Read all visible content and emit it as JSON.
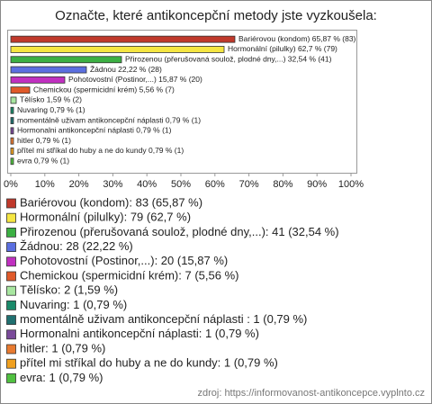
{
  "chart_data": {
    "type": "bar",
    "orientation": "horizontal",
    "title": "Označte, které antikoncepční metody jste vyzkoušela:",
    "categories": [
      "Bariérovou (kondom)",
      "Hormonální (pilulky)",
      "Přirozenou (přerušovaná soulož, plodné dny,...)",
      "Žádnou",
      "Pohotovostní (Postinor,...)",
      "Chemickou (spermicidní krém)",
      "Tělísko",
      "Nuvaring",
      "momentálně uživam antikoncepční náplasti",
      "Hormonalni antikoncepční náplasti",
      "hitler",
      "přítel mi stříkal do huby a ne do kundy",
      "evra"
    ],
    "values": [
      65.87,
      62.7,
      32.54,
      22.22,
      15.87,
      5.56,
      1.59,
      0.79,
      0.79,
      0.79,
      0.79,
      0.79,
      0.79
    ],
    "value_labels": [
      "Bariérovou (kondom) 65,87 % (83)",
      "Hormonální (pilulky) 62,7 % (79)",
      "Přirozenou (přerušovaná soulož, plodné dny,...) 32,54 % (41)",
      "Žádnou 22,22 % (28)",
      "Pohotovostní (Postinor,...) 15,87 % (20)",
      "Chemickou (spermicidní krém) 5,56 % (7)",
      "Tělísko 1,59 % (2)",
      "Nuvaring 0,79 % (1)",
      "momentálně uživam antikoncepční náplasti 0,79 % (1)",
      "Hormonalni antikoncepční náplasti 0,79 % (1)",
      "hitler 0,79 % (1)",
      "přítel mi stříkal do huby a ne do kundy 0,79 % (1)",
      "evra 0,79 % (1)"
    ],
    "colors": [
      "#c0392b",
      "#f5e642",
      "#3cb043",
      "#5b6fe0",
      "#c030c0",
      "#e05a2a",
      "#a8e6a0",
      "#1a8a6a",
      "#207070",
      "#7a4a9a",
      "#e87a30",
      "#f0a020",
      "#50c040"
    ],
    "legend_labels": [
      "Bariérovou (kondom): 83 (65,87 %)",
      "Hormonální (pilulky): 79 (62,7 %)",
      "Přirozenou (přerušovaná soulož, plodné dny,...): 41 (32,54 %)",
      "Žádnou: 28 (22,22 %)",
      "Pohotovostní (Postinor,...): 20 (15,87 %)",
      "Chemickou (spermicidní krém): 7 (5,56 %)",
      "Tělísko: 2 (1,59 %)",
      "Nuvaring: 1 (0,79 %)",
      "momentálně uživam antikoncepční náplasti : 1 (0,79 %)",
      "Hormonalni antikoncepční náplasti: 1 (0,79 %)",
      "hitler: 1 (0,79 %)",
      "přítel mi stříkal do huby a ne do kundy: 1 (0,79 %)",
      "evra: 1 (0,79 %)"
    ],
    "xlim": [
      0,
      100
    ],
    "xticks": [
      {
        "value": 0,
        "label": "0%"
      },
      {
        "value": 10,
        "label": "10%"
      },
      {
        "value": 20,
        "label": "20%"
      },
      {
        "value": 30,
        "label": "30%"
      },
      {
        "value": 40,
        "label": "40%"
      },
      {
        "value": 50,
        "label": "50%"
      },
      {
        "value": 60,
        "label": "60%"
      },
      {
        "value": 70,
        "label": "70%"
      },
      {
        "value": 80,
        "label": "80%"
      },
      {
        "value": 90,
        "label": "90%"
      },
      {
        "value": 100,
        "label": "100%"
      }
    ],
    "source": "zdroj: https://informovanost-antikoncepce.vyplnto.cz"
  }
}
